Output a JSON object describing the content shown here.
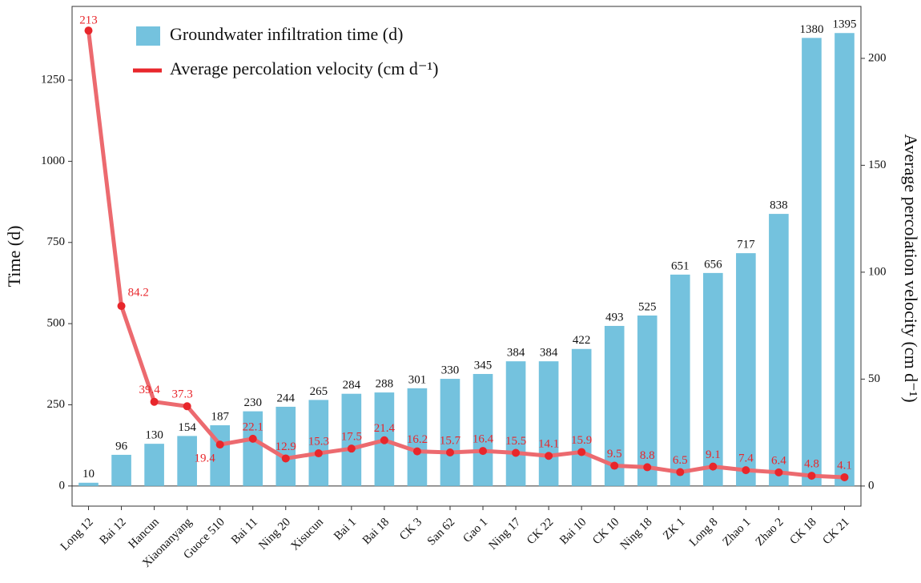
{
  "chart_data": {
    "type": "bar-line",
    "categories": [
      "Long 12",
      "Bai 12",
      "Hancun",
      "Xiaonanyang",
      "Guoce 510",
      "Bai 11",
      "Ning 20",
      "Xisucun",
      "Bai 1",
      "Bai 18",
      "CK 3",
      "San 62",
      "Gao 1",
      "Ning 17",
      "CK 22",
      "Bai 10",
      "CK 10",
      "Ning 18",
      "ZK 1",
      "Long 8",
      "Zhao 1",
      "Zhao 2",
      "CK 18",
      "CK 21"
    ],
    "series": [
      {
        "name": "Groundwater infiltration time (d)",
        "color": "#74c2de",
        "type": "bar",
        "values": [
          10,
          96,
          130,
          154,
          187,
          230,
          244,
          265,
          284,
          288,
          301,
          330,
          345,
          384,
          384,
          422,
          493,
          525,
          651,
          656,
          717,
          838,
          1380,
          1395
        ]
      },
      {
        "name": "Average percolation velocity (cm d⁻¹)",
        "color": "#ec6a6f",
        "type": "line",
        "axis": "y2",
        "values": [
          213,
          84.2,
          39.4,
          37.3,
          19.4,
          22.1,
          12.9,
          15.3,
          17.5,
          21.4,
          16.2,
          15.7,
          16.4,
          15.5,
          14.1,
          15.9,
          9.5,
          8.8,
          6.5,
          9.1,
          7.4,
          6.4,
          4.8,
          4.1
        ]
      }
    ],
    "y_label": "Time (d)",
    "y2_label": "Average percolation velocity (cm d⁻¹)",
    "ylim": [
      -62,
      1477
    ],
    "yticks": [
      0,
      250,
      500,
      750,
      1000,
      1250
    ],
    "y2lim": [
      -9.4,
      224.3
    ],
    "y2ticks": [
      0,
      50,
      100,
      150,
      200
    ],
    "legend": "top-left",
    "grid": false
  }
}
